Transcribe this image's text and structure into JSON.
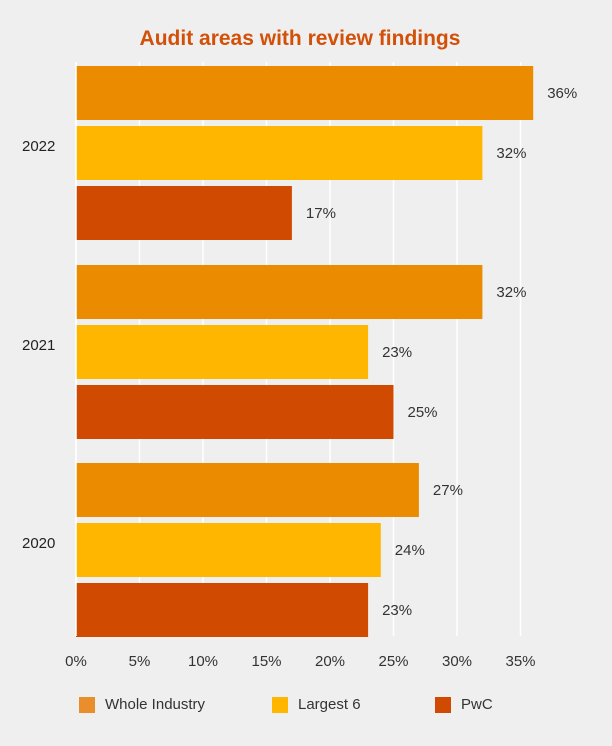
{
  "chart_data": {
    "type": "bar",
    "orientation": "horizontal",
    "title": "Audit areas with review findings",
    "categories": [
      "2022",
      "2021",
      "2020"
    ],
    "series": [
      {
        "name": "Whole Industry",
        "color": "#eb8c00",
        "values": [
          36,
          32,
          27
        ],
        "labels": [
          "36%",
          "32%",
          "27%"
        ]
      },
      {
        "name": "Largest 6",
        "color": "#ffb600",
        "values": [
          32,
          23,
          24
        ],
        "labels": [
          "32%",
          "23%",
          "24%"
        ]
      },
      {
        "name": "PwC",
        "color": "#d04a02",
        "values": [
          17,
          25,
          23
        ],
        "labels": [
          "17%",
          "25%",
          "23%"
        ]
      }
    ],
    "x_ticks": [
      0,
      5,
      10,
      15,
      20,
      25,
      30,
      35
    ],
    "x_tick_labels": [
      "0%",
      "5%",
      "10%",
      "15%",
      "20%",
      "25%",
      "30%",
      "35%"
    ],
    "xlim": [
      0,
      36
    ],
    "grid": true,
    "legend_position": "bottom"
  },
  "colors": {
    "title": "#d35008",
    "background": "#efefef",
    "grid": "#ffffff"
  }
}
